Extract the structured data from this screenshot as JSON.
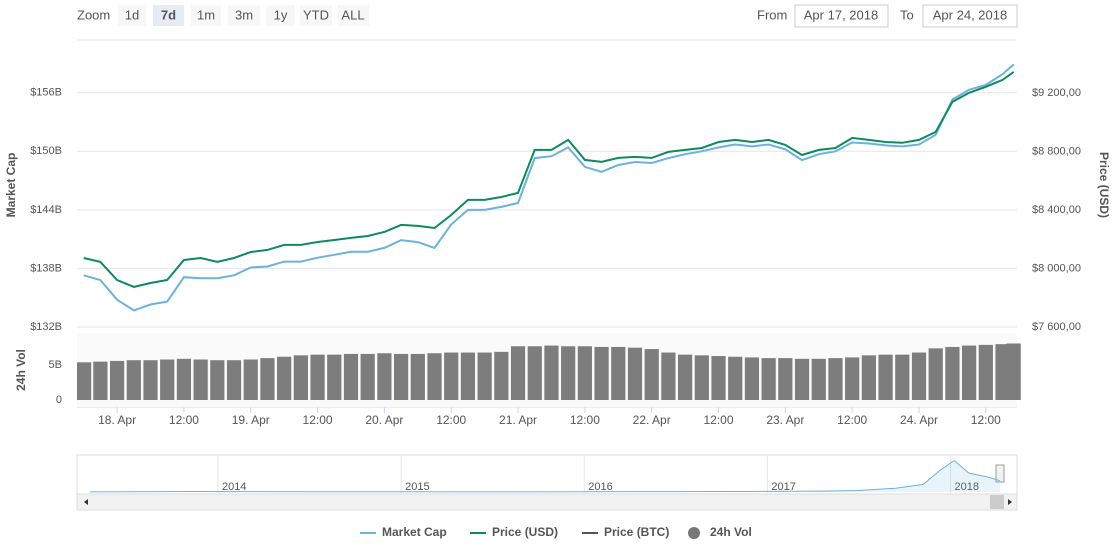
{
  "toolbar": {
    "zoom_label": "Zoom",
    "buttons": [
      "1d",
      "7d",
      "1m",
      "3m",
      "1y",
      "YTD",
      "ALL"
    ],
    "active": 1,
    "from_label": "From",
    "from_value": "Apr 17, 2018",
    "to_label": "To",
    "to_value": "Apr 24, 2018"
  },
  "chart_data": [
    {
      "type": "line",
      "ylabel": "Market Cap",
      "y2label": "Price (USD)",
      "grid": true,
      "x": [
        -6,
        -3,
        0,
        3,
        6,
        9,
        12,
        15,
        18,
        21,
        24,
        27,
        30,
        33,
        36,
        39,
        42,
        45,
        48,
        51,
        54,
        57,
        60,
        63,
        66,
        69,
        72,
        75,
        78,
        81,
        84,
        87,
        90,
        93,
        96,
        99,
        102,
        105,
        108,
        111,
        114,
        117,
        120,
        123,
        126,
        129,
        132,
        135,
        138,
        141,
        144,
        147,
        150,
        153,
        156,
        159,
        161
      ],
      "xlim": [
        -7.2,
        161.6
      ],
      "xticks": [
        {
          "value": 0,
          "label": "18. Apr"
        },
        {
          "value": 12,
          "label": "12:00"
        },
        {
          "value": 24,
          "label": "19. Apr"
        },
        {
          "value": 36,
          "label": "12:00"
        },
        {
          "value": 48,
          "label": "20. Apr"
        },
        {
          "value": 60,
          "label": "12:00"
        },
        {
          "value": 72,
          "label": "21. Apr"
        },
        {
          "value": 84,
          "label": "12:00"
        },
        {
          "value": 96,
          "label": "22. Apr"
        },
        {
          "value": 108,
          "label": "12:00"
        },
        {
          "value": 120,
          "label": "23. Apr"
        },
        {
          "value": 132,
          "label": "12:00"
        },
        {
          "value": 144,
          "label": "24. Apr"
        },
        {
          "value": 156,
          "label": "12:00"
        }
      ],
      "ylim": [
        132,
        161.4
      ],
      "yticks": [
        {
          "value": 132,
          "label": "$132B"
        },
        {
          "value": 138,
          "label": "$138B"
        },
        {
          "value": 144,
          "label": "$144B"
        },
        {
          "value": 150,
          "label": "$150B"
        },
        {
          "value": 156,
          "label": "$156B"
        }
      ],
      "y2lim": [
        7600,
        9562
      ],
      "y2ticks": [
        {
          "value": 7600,
          "label": "$7 600,00"
        },
        {
          "value": 8000,
          "label": "$8 000,00"
        },
        {
          "value": 8400,
          "label": "$8 400,00"
        },
        {
          "value": 8800,
          "label": "$8 800,00"
        },
        {
          "value": 9200,
          "label": "$9 200,00"
        }
      ],
      "series": [
        {
          "name": "Market Cap",
          "color": "#6cb2dc",
          "values": [
            137.3,
            136.8,
            134.8,
            133.7,
            134.3,
            134.6,
            137.1,
            137.0,
            137.0,
            137.3,
            138.1,
            138.2,
            138.7,
            138.7,
            139.1,
            139.4,
            139.7,
            139.7,
            140.1,
            140.9,
            140.7,
            140.1,
            142.5,
            144.0,
            144.0,
            144.3,
            144.7,
            149.3,
            149.5,
            150.4,
            148.4,
            147.9,
            148.6,
            148.9,
            148.8,
            149.3,
            149.7,
            150.0,
            150.4,
            150.7,
            150.5,
            150.7,
            150.2,
            149.1,
            149.7,
            150.0,
            150.9,
            150.8,
            150.6,
            150.5,
            150.7,
            151.7,
            155.3,
            156.3,
            156.8,
            157.9,
            158.9
          ]
        },
        {
          "name": "Price (USD)",
          "color": "#0e8a62",
          "axis": "y2",
          "values": [
            8072,
            8045,
            7921,
            7874,
            7901,
            7921,
            8058,
            8072,
            8045,
            8072,
            8113,
            8127,
            8161,
            8161,
            8181,
            8195,
            8209,
            8222,
            8250,
            8298,
            8291,
            8277,
            8366,
            8469,
            8469,
            8489,
            8517,
            8811,
            8811,
            8879,
            8742,
            8729,
            8756,
            8763,
            8756,
            8797,
            8811,
            8824,
            8865,
            8879,
            8865,
            8879,
            8845,
            8776,
            8811,
            8824,
            8893,
            8879,
            8865,
            8859,
            8879,
            8934,
            9139,
            9201,
            9242,
            9289,
            9344
          ]
        }
      ],
      "hidden_series": [
        {
          "name": "Price (BTC)",
          "color": "#555555"
        }
      ]
    },
    {
      "type": "bar",
      "name": "24h Vol",
      "ylabel": "24h Vol",
      "color": "#7d7d7d",
      "x": [
        -6,
        -3,
        0,
        3,
        6,
        9,
        12,
        15,
        18,
        21,
        24,
        27,
        30,
        33,
        36,
        39,
        42,
        45,
        48,
        51,
        54,
        57,
        60,
        63,
        66,
        69,
        72,
        75,
        78,
        81,
        84,
        87,
        90,
        93,
        96,
        99,
        102,
        105,
        108,
        111,
        114,
        117,
        120,
        123,
        126,
        129,
        132,
        135,
        138,
        141,
        144,
        147,
        150,
        153,
        156,
        159,
        161
      ],
      "xlim": [
        -7.2,
        161.6
      ],
      "ylim": [
        0,
        9.6
      ],
      "yticks": [
        0,
        {
          "value": 5,
          "label": "5B"
        }
      ],
      "values": [
        5.4,
        5.5,
        5.6,
        5.7,
        5.7,
        5.8,
        5.9,
        5.8,
        5.7,
        5.7,
        5.8,
        6.0,
        6.2,
        6.4,
        6.5,
        6.5,
        6.6,
        6.6,
        6.7,
        6.6,
        6.6,
        6.7,
        6.8,
        6.8,
        6.8,
        6.9,
        7.7,
        7.7,
        7.8,
        7.7,
        7.7,
        7.6,
        7.6,
        7.5,
        7.3,
        6.8,
        6.5,
        6.4,
        6.3,
        6.2,
        6.1,
        6.0,
        6.0,
        5.9,
        5.9,
        6.0,
        6.1,
        6.4,
        6.5,
        6.5,
        6.8,
        7.4,
        7.6,
        7.8,
        7.9,
        8.0,
        8.1
      ]
    },
    {
      "type": "area",
      "color": "#6cb2dc",
      "x": [
        2013.3,
        2013.9,
        2014.0,
        2014.5,
        2015.0,
        2015.5,
        2016.0,
        2016.5,
        2017.0,
        2017.3,
        2017.5,
        2017.7,
        2017.85,
        2017.95,
        2018.02,
        2018.1,
        2018.2,
        2018.27
      ],
      "xlim": [
        2013.23,
        2018.27
      ],
      "xticks": [
        2014,
        2015,
        2016,
        2017,
        2018
      ],
      "ylim": [
        0,
        900
      ],
      "values": [
        2,
        13,
        10,
        8,
        4,
        3,
        7,
        10,
        17,
        25,
        40,
        100,
        200,
        600,
        830,
        500,
        400,
        300
      ]
    }
  ]
}
